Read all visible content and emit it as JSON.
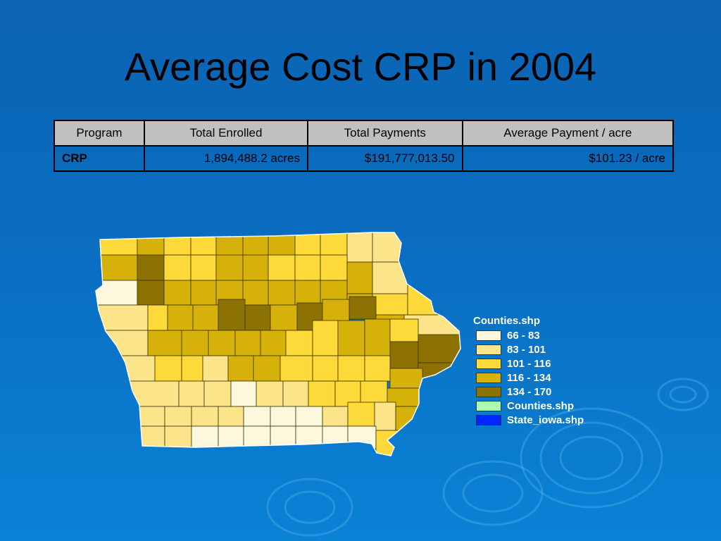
{
  "title": "Average Cost CRP in 2004",
  "table": {
    "headers": [
      "Program",
      "Total Enrolled",
      "Total Payments",
      "Average Payment / acre"
    ],
    "rows": [
      [
        "CRP",
        "1,894,488.2 acres",
        "$191,777,013.50",
        "$101.23 / acre"
      ]
    ]
  },
  "legend": {
    "title": "Counties.shp",
    "items": [
      {
        "label": "66 - 83",
        "color": "#fdf7de"
      },
      {
        "label": "83 - 101",
        "color": "#fbe48a"
      },
      {
        "label": "101 - 116",
        "color": "#fdd93a"
      },
      {
        "label": "116 - 134",
        "color": "#d6b10a"
      },
      {
        "label": "134 - 170",
        "color": "#8b7203"
      },
      {
        "label": "Counties.shp",
        "color": "#a8ffb0"
      },
      {
        "label": "State_iowa.shp",
        "color": "#0026ff"
      }
    ]
  }
}
